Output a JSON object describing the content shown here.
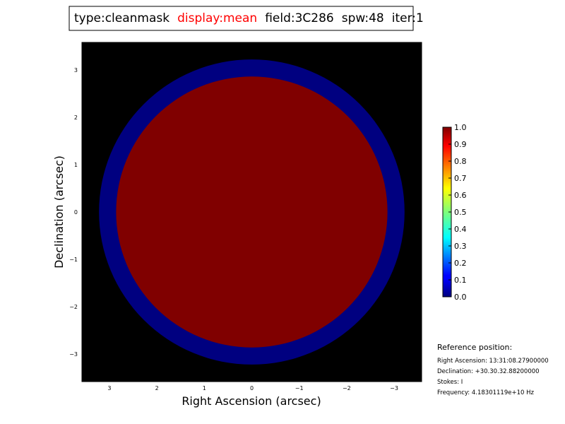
{
  "chart_data": {
    "type": "image",
    "title": [
      {
        "text": "type:cleanmask",
        "color": "#000000"
      },
      {
        "text": "display:mean",
        "color": "#ff0000"
      },
      {
        "text": "field:3C286",
        "color": "#000000"
      },
      {
        "text": "spw:48",
        "color": "#000000"
      },
      {
        "text": "iter:1",
        "color": "#000000"
      }
    ],
    "x_label": "Right Ascension (arcsec)",
    "y_label": "Declination (arcsec)",
    "background": "#000000",
    "colormap": "jet",
    "regions": [
      {
        "center": [
          0,
          0
        ],
        "radius": 3.22,
        "value": 0
      },
      {
        "center": [
          0,
          0
        ],
        "radius": 2.86,
        "value": 1
      }
    ],
    "xlim": [
      3.58,
      -3.58
    ],
    "ylim": [
      -3.58,
      3.58
    ],
    "xticks": [
      3,
      2,
      1,
      0,
      {
        "value": -1,
        "label": "−1"
      },
      {
        "value": -2,
        "label": "−2"
      },
      {
        "value": -3,
        "label": "−3"
      }
    ],
    "yticks": [
      {
        "value": -3,
        "label": "−3"
      },
      {
        "value": -2,
        "label": "−2"
      },
      {
        "value": -1,
        "label": "−1"
      },
      0,
      1,
      2,
      3
    ],
    "clim": [
      0,
      1
    ],
    "cticks": [
      {
        "value": 0,
        "label": "0.0"
      },
      0.1,
      0.2,
      0.3,
      0.4,
      0.5,
      0.6,
      0.7,
      0.8,
      0.9,
      {
        "value": 1,
        "label": "1.0"
      }
    ],
    "reference": {
      "heading": "Reference position:",
      "lines": [
        "Right Ascension: 13:31:08.27900000",
        "Declination: +30.30.32.88200000",
        "Stokes: I",
        "Frequency: 4.18301119e+10 Hz"
      ]
    }
  }
}
